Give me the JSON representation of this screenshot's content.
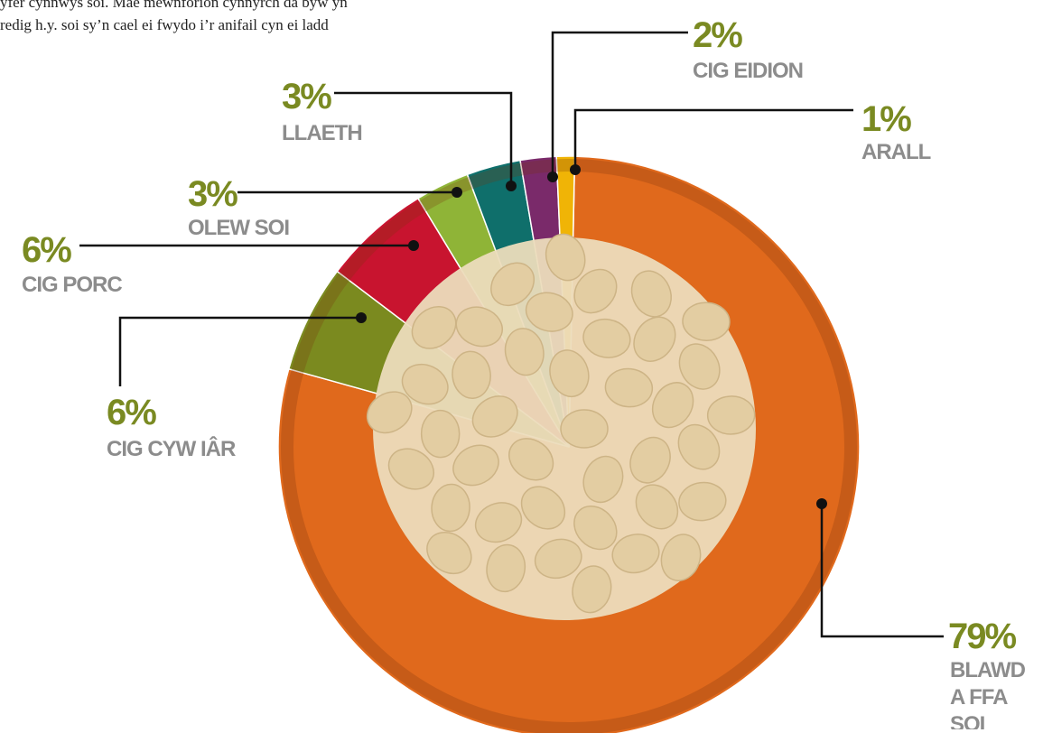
{
  "chart_data": {
    "type": "pie",
    "caption": [
      "yfer cynnwys soi. Mae mewnforion cynnyrch da byw yn",
      "redig h.y. soi sy’n cael ei fwydo i’r anifail cyn ei ladd"
    ],
    "categories": [
      "BLAWD A FFA SOI",
      "CIG CYW IÂR",
      "CIG PORC",
      "OLEW SOI",
      "LLAETH",
      "CIG EIDION",
      "ARALL"
    ],
    "values": [
      79,
      6,
      6,
      3,
      3,
      2,
      1
    ],
    "value_labels": [
      "79%",
      "6%",
      "6%",
      "3%",
      "3%",
      "2%",
      "1%"
    ],
    "colors": [
      "#e0691c",
      "#7b8a1f",
      "#c8142f",
      "#8fb437",
      "#0f6f6b",
      "#7a2a6a",
      "#f0b406"
    ]
  }
}
